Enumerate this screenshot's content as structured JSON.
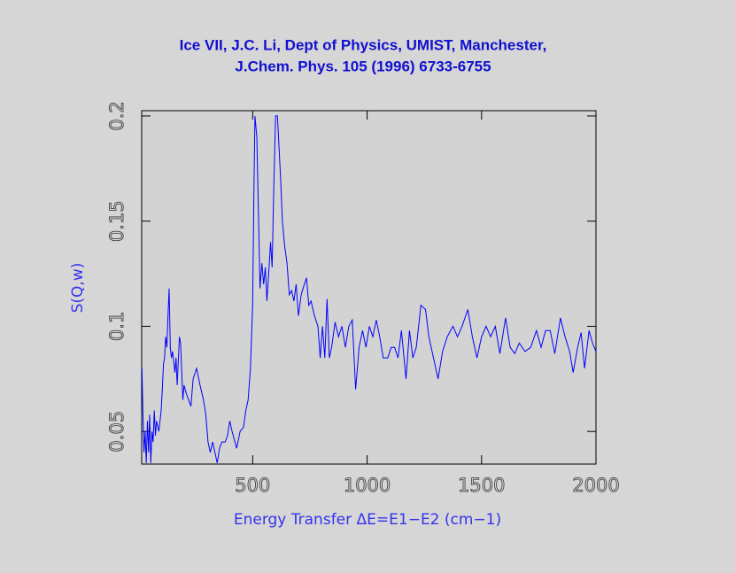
{
  "chart_data": {
    "type": "line",
    "title": "Ice VII, J.C. Li, Dept of Physics, UMIST, Manchester,",
    "subtitle": "J.Chem. Phys. 105 (1996) 6733-6755",
    "x_label": "Energy Transfer ΔE=E1−E2 (cm−1)",
    "y_label": "S(Q,w)",
    "xlim": [
      15,
      2000
    ],
    "ylim": [
      0.0345,
      0.2025
    ],
    "xticks": [
      500,
      1000,
      1500,
      2000
    ],
    "yticks": [
      0.05,
      0.1,
      0.15,
      0.2
    ],
    "x": [
      16,
      20,
      25,
      30,
      35,
      40,
      45,
      50,
      55,
      60,
      65,
      70,
      75,
      80,
      90,
      100,
      105,
      110,
      115,
      120,
      125,
      130,
      135,
      140,
      145,
      150,
      160,
      165,
      170,
      180,
      185,
      195,
      200,
      210,
      220,
      230,
      240,
      255,
      270,
      285,
      295,
      305,
      315,
      325,
      335,
      345,
      355,
      365,
      380,
      390,
      400,
      410,
      420,
      430,
      445,
      460,
      470,
      480,
      490,
      500,
      505,
      510,
      518,
      525,
      532,
      540,
      548,
      555,
      562,
      570,
      578,
      585,
      592,
      600,
      608,
      615,
      622,
      630,
      640,
      650,
      660,
      670,
      680,
      690,
      700,
      712,
      720,
      735,
      745,
      755,
      770,
      785,
      795,
      805,
      815,
      825,
      835,
      845,
      860,
      875,
      890,
      905,
      920,
      935,
      950,
      965,
      980,
      995,
      1010,
      1025,
      1040,
      1055,
      1070,
      1090,
      1105,
      1120,
      1135,
      1150,
      1170,
      1185,
      1200,
      1215,
      1235,
      1255,
      1270,
      1290,
      1310,
      1330,
      1350,
      1375,
      1395,
      1415,
      1440,
      1460,
      1480,
      1500,
      1520,
      1540,
      1560,
      1580,
      1605,
      1625,
      1645,
      1665,
      1690,
      1715,
      1740,
      1760,
      1780,
      1800,
      1820,
      1845,
      1865,
      1885,
      1900,
      1920,
      1935,
      1950,
      1970,
      1985,
      2000
    ],
    "series": [
      {
        "name": "S(Q,w)",
        "color": "#0000ff",
        "values": [
          0.08,
          0.06,
          0.04,
          0.05,
          0.035,
          0.055,
          0.04,
          0.058,
          0.035,
          0.05,
          0.045,
          0.06,
          0.048,
          0.055,
          0.05,
          0.06,
          0.07,
          0.082,
          0.085,
          0.095,
          0.09,
          0.105,
          0.118,
          0.09,
          0.085,
          0.088,
          0.078,
          0.085,
          0.072,
          0.095,
          0.092,
          0.065,
          0.072,
          0.068,
          0.065,
          0.062,
          0.075,
          0.08,
          0.072,
          0.065,
          0.058,
          0.045,
          0.04,
          0.045,
          0.04,
          0.035,
          0.042,
          0.045,
          0.045,
          0.048,
          0.055,
          0.05,
          0.046,
          0.042,
          0.05,
          0.052,
          0.06,
          0.065,
          0.08,
          0.11,
          0.16,
          0.2,
          0.19,
          0.155,
          0.118,
          0.13,
          0.12,
          0.128,
          0.112,
          0.125,
          0.14,
          0.128,
          0.165,
          0.2,
          0.2,
          0.185,
          0.17,
          0.15,
          0.138,
          0.13,
          0.115,
          0.117,
          0.112,
          0.12,
          0.105,
          0.115,
          0.118,
          0.123,
          0.11,
          0.112,
          0.105,
          0.1,
          0.085,
          0.1,
          0.085,
          0.113,
          0.085,
          0.09,
          0.102,
          0.095,
          0.1,
          0.09,
          0.1,
          0.103,
          0.07,
          0.09,
          0.098,
          0.09,
          0.1,
          0.095,
          0.103,
          0.095,
          0.085,
          0.085,
          0.09,
          0.09,
          0.085,
          0.098,
          0.075,
          0.098,
          0.085,
          0.09,
          0.11,
          0.108,
          0.095,
          0.085,
          0.075,
          0.088,
          0.095,
          0.1,
          0.095,
          0.1,
          0.108,
          0.095,
          0.085,
          0.095,
          0.1,
          0.095,
          0.1,
          0.087,
          0.104,
          0.09,
          0.087,
          0.092,
          0.088,
          0.09,
          0.098,
          0.09,
          0.098,
          0.098,
          0.087,
          0.104,
          0.095,
          0.088,
          0.078,
          0.09,
          0.097,
          0.08,
          0.098,
          0.092,
          0.088
        ]
      }
    ]
  }
}
